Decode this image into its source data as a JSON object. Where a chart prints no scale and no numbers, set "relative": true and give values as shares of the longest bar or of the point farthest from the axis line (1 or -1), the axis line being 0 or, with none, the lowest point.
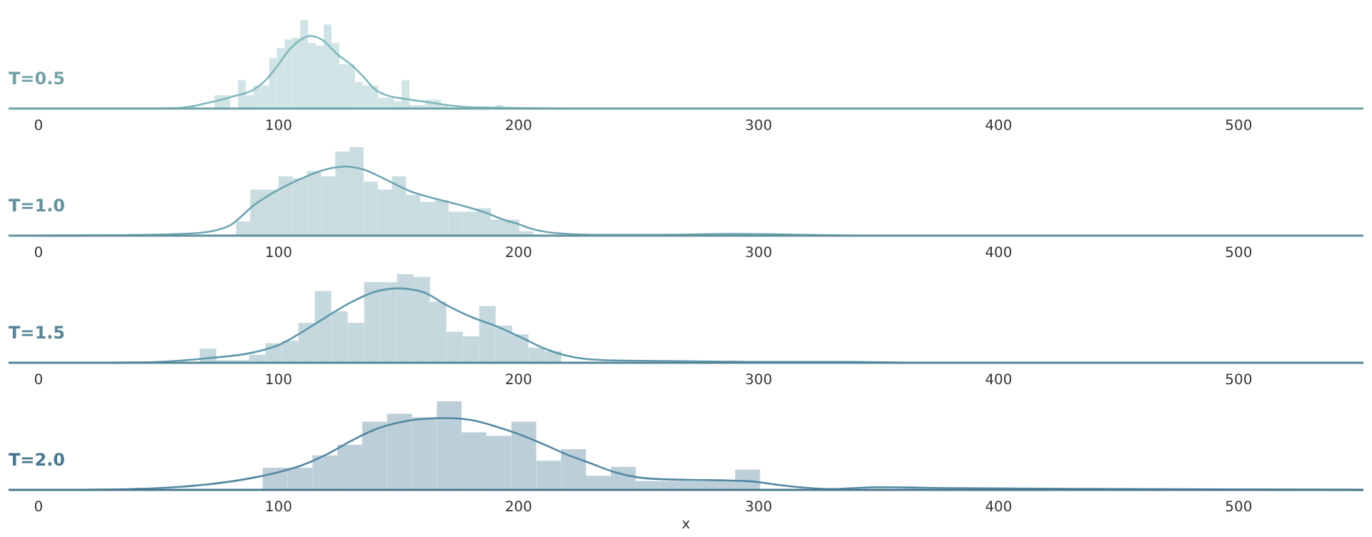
{
  "chart_data": [
    {
      "type": "histogram",
      "title": "T=0.5",
      "relative": true,
      "xlim": [
        -12.5,
        552
      ],
      "xticks": [
        0,
        100,
        200,
        300,
        400,
        500
      ],
      "series": [
        {
          "color": "#d0e4e5",
          "bins": [
            73.3,
            76.55,
            79.8,
            83.05,
            86.3,
            89.55,
            92.8,
            96.05,
            99.3,
            102.55,
            105.8,
            109.05,
            112.3,
            115.55,
            118.8,
            122.05,
            125.3,
            128.55,
            131.8,
            135.05,
            138.3,
            141.55,
            144.8,
            148.05,
            151.3,
            154.55,
            157.8,
            161.05,
            164.3,
            167.55,
            170.8,
            174.05,
            177.3,
            180.55,
            183.8,
            187.05,
            190.3,
            193.55,
            196.8
          ],
          "values": [
            0.15,
            0.15,
            0,
            0.32,
            0.15,
            0.26,
            0.26,
            0.57,
            0.68,
            0.78,
            0.8,
            1.0,
            0.74,
            0.71,
            0.95,
            0.74,
            0.5,
            0.5,
            0.3,
            0.26,
            0.26,
            0.12,
            0.12,
            0.08,
            0.32,
            0.04,
            0.04,
            0.1,
            0.1,
            0.03,
            null,
            0.01,
            0,
            0.01,
            0,
            0,
            0.04,
            0.01
          ]
        },
        {
          "type": "line",
          "color": "#7fb9bd",
          "x": [
            50,
            60,
            70,
            80,
            90,
            95,
            100,
            105,
            110,
            113,
            118,
            125,
            130,
            135,
            140,
            145,
            150,
            155,
            160,
            165,
            170,
            180,
            190,
            200,
            220
          ],
          "values": [
            0,
            0.01,
            0.06,
            0.13,
            0.22,
            0.33,
            0.5,
            0.68,
            0.79,
            0.82,
            0.78,
            0.6,
            0.5,
            0.37,
            0.22,
            0.15,
            0.12,
            0.1,
            0.08,
            0.06,
            0.04,
            0.015,
            0.01,
            0.005,
            0
          ]
        }
      ]
    },
    {
      "type": "histogram",
      "title": "T=1.0",
      "relative": true,
      "xlim": [
        -12.5,
        552
      ],
      "xticks": [
        0,
        100,
        200,
        300,
        400,
        500
      ],
      "series": [
        {
          "color": "#c9dde1",
          "bins": [
            82.3,
            88.2,
            94.1,
            100,
            105.9,
            111.8,
            117.7,
            123.6,
            129.5,
            135.4,
            141.3,
            147.2,
            153.1,
            159,
            164.9,
            170.8,
            176.7,
            182.6,
            188.5,
            194.4,
            200.3,
            206.2
          ],
          "values": [
            0.16,
            0.52,
            0.52,
            0.67,
            0.65,
            0.73,
            0.67,
            0.95,
            1.0,
            0.61,
            0.52,
            0.67,
            0.46,
            0.38,
            0.4,
            0.27,
            0.27,
            0.31,
            0.18,
            0.18,
            0.05
          ]
        },
        {
          "type": "line",
          "color": "#6da5b2",
          "x": [
            0,
            30,
            60,
            70,
            80,
            90,
            100,
            110,
            120,
            128,
            135,
            145,
            155,
            165,
            175,
            185,
            195,
            200,
            205,
            215,
            230,
            260,
            290,
            320,
            340
          ],
          "values": [
            0,
            0.005,
            0.02,
            0.04,
            0.12,
            0.35,
            0.52,
            0.65,
            0.75,
            0.78,
            0.75,
            0.63,
            0.5,
            0.42,
            0.35,
            0.27,
            0.17,
            0.13,
            0.08,
            0.03,
            0.01,
            0.01,
            0.02,
            0.01,
            0
          ]
        }
      ]
    },
    {
      "type": "histogram",
      "title": "T=1.5",
      "relative": true,
      "xlim": [
        -12.5,
        552
      ],
      "xticks": [
        0,
        100,
        200,
        300,
        400,
        500
      ],
      "series": [
        {
          "color": "#c4d8de",
          "bins": [
            67.15,
            74,
            80.85,
            87.7,
            94.55,
            101.4,
            108.25,
            115.1,
            121.95,
            128.8,
            135.65,
            142.5,
            149.35,
            156.2,
            163.05,
            169.9,
            176.75,
            183.6,
            190.45,
            197.3,
            204.15,
            211,
            217.85
          ],
          "values": [
            0.16,
            0.03,
            0.03,
            0.09,
            0.22,
            0.25,
            0.45,
            0.81,
            0.58,
            0.45,
            0.91,
            0.91,
            1.0,
            0.97,
            0.69,
            0.35,
            0.3,
            0.64,
            0.42,
            0.32,
            0.17,
            0.13
          ]
        },
        {
          "type": "line",
          "color": "#5f98ac",
          "x": [
            30,
            50,
            70,
            90,
            100,
            110,
            120,
            130,
            140,
            150,
            160,
            170,
            180,
            190,
            200,
            210,
            220,
            235,
            260,
            300,
            340,
            360
          ],
          "values": [
            0,
            0.01,
            0.05,
            0.12,
            0.2,
            0.35,
            0.52,
            0.68,
            0.8,
            0.84,
            0.8,
            0.65,
            0.52,
            0.42,
            0.3,
            0.17,
            0.08,
            0.03,
            0.02,
            0.01,
            0.01,
            0
          ]
        }
      ]
    },
    {
      "type": "histogram",
      "title": "T=2.0",
      "xlabel": "x",
      "relative": true,
      "xlim": [
        -12.5,
        552
      ],
      "xticks": [
        0,
        100,
        200,
        300,
        400,
        500
      ],
      "series": [
        {
          "color": "#bccfd9",
          "bins": [
            93.4,
            103.76,
            114.12,
            124.48,
            134.84,
            145.2,
            155.56,
            165.92,
            176.28,
            186.64,
            197,
            207.36,
            217.72,
            228.08,
            238.44,
            248.8,
            259.16,
            269.52,
            279.88,
            290.24,
            300.6
          ],
          "values": [
            0.25,
            0.25,
            0.39,
            0.51,
            0.77,
            0.86,
            0.82,
            1.0,
            0.65,
            0.61,
            0.77,
            0.33,
            0.46,
            0.16,
            0.26,
            0.1,
            0.1,
            0.1,
            0.1,
            0.23
          ]
        },
        {
          "type": "line",
          "color": "#5287a3",
          "x": [
            20,
            50,
            70,
            90,
            100,
            110,
            120,
            130,
            140,
            150,
            160,
            170,
            180,
            190,
            200,
            210,
            220,
            230,
            240,
            250,
            260,
            280,
            295,
            310,
            330,
            350,
            380,
            450,
            552
          ],
          "values": [
            0,
            0.02,
            0.06,
            0.14,
            0.2,
            0.28,
            0.4,
            0.55,
            0.68,
            0.76,
            0.8,
            0.81,
            0.79,
            0.72,
            0.63,
            0.52,
            0.4,
            0.3,
            0.2,
            0.14,
            0.12,
            0.11,
            0.1,
            0.05,
            0.01,
            0.03,
            0.02,
            0.01,
            0
          ]
        }
      ]
    }
  ]
}
